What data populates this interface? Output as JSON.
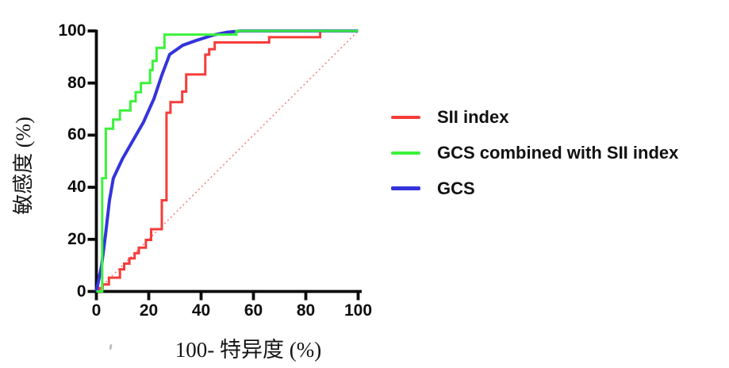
{
  "chart_data": {
    "type": "line",
    "subtype": "roc-curve",
    "title": "",
    "xlabel": "100- 特异度 (%)",
    "ylabel": "敏感度 (%)",
    "xlim": [
      0,
      100
    ],
    "ylim": [
      0,
      100
    ],
    "x_ticks": [
      "0",
      "20",
      "40",
      "60",
      "80",
      "100"
    ],
    "y_ticks": [
      "0",
      "20",
      "40",
      "60",
      "80",
      "100"
    ],
    "grid": false,
    "legend_position": "right-center",
    "axis_color": "#0a0a0a",
    "series": [
      {
        "name": "SII index",
        "color": "#f63c3a",
        "line_width": 3,
        "line_style": "solid",
        "points": [
          [
            0,
            0
          ],
          [
            1,
            0
          ],
          [
            1,
            1.3
          ],
          [
            2.4,
            1.3
          ],
          [
            2.4,
            2.7
          ],
          [
            4.8,
            2.7
          ],
          [
            4.8,
            5.3
          ],
          [
            9,
            5.3
          ],
          [
            9,
            8.5
          ],
          [
            10.6,
            8.5
          ],
          [
            10.6,
            10.7
          ],
          [
            12.6,
            10.7
          ],
          [
            12.6,
            12.7
          ],
          [
            14.6,
            12.7
          ],
          [
            14.6,
            14.7
          ],
          [
            16.2,
            14.7
          ],
          [
            16.2,
            16.8
          ],
          [
            18.9,
            16.8
          ],
          [
            18.9,
            19.8
          ],
          [
            20.9,
            19.8
          ],
          [
            20.9,
            23.9
          ],
          [
            25,
            23.9
          ],
          [
            25,
            35
          ],
          [
            26.8,
            35
          ],
          [
            26.8,
            68.6
          ],
          [
            28.3,
            68.6
          ],
          [
            28.3,
            72.7
          ],
          [
            32.8,
            72.7
          ],
          [
            32.8,
            76.7
          ],
          [
            34.3,
            76.7
          ],
          [
            34.3,
            83.3
          ],
          [
            41.6,
            83.3
          ],
          [
            41.6,
            90.9
          ],
          [
            43.1,
            90.9
          ],
          [
            43.1,
            93
          ],
          [
            45.2,
            93
          ],
          [
            45.2,
            95.6
          ],
          [
            66,
            95.6
          ],
          [
            66,
            97.6
          ],
          [
            85.5,
            97.6
          ],
          [
            85.5,
            100
          ],
          [
            100,
            100
          ]
        ]
      },
      {
        "name": "GCS combined with SII index",
        "color": "#3bf23b",
        "line_width": 3,
        "line_style": "solid",
        "points": [
          [
            0,
            0
          ],
          [
            2.2,
            0
          ],
          [
            2.2,
            43.5
          ],
          [
            3.6,
            43.5
          ],
          [
            3.6,
            62.5
          ],
          [
            6.4,
            62.5
          ],
          [
            6.4,
            66
          ],
          [
            9,
            66
          ],
          [
            9,
            69.5
          ],
          [
            13,
            69.5
          ],
          [
            13,
            73
          ],
          [
            15,
            73
          ],
          [
            15,
            76.5
          ],
          [
            17,
            76.5
          ],
          [
            17,
            80
          ],
          [
            20.5,
            80
          ],
          [
            20.5,
            85
          ],
          [
            21.5,
            85
          ],
          [
            21.5,
            88.5
          ],
          [
            23,
            88.5
          ],
          [
            23,
            93.5
          ],
          [
            26,
            93.5
          ],
          [
            26,
            98.6
          ],
          [
            53.5,
            98.6
          ],
          [
            53.5,
            100
          ],
          [
            100,
            100
          ]
        ]
      },
      {
        "name": "GCS",
        "color": "#3434dc",
        "line_width": 4,
        "line_style": "solid",
        "points": [
          [
            0,
            0
          ],
          [
            2,
            10
          ],
          [
            3.5,
            22
          ],
          [
            5,
            35
          ],
          [
            6.5,
            43.5
          ],
          [
            10,
            51
          ],
          [
            14,
            58
          ],
          [
            18,
            65
          ],
          [
            22,
            74
          ],
          [
            25,
            83
          ],
          [
            28,
            91
          ],
          [
            33,
            94.5
          ],
          [
            38,
            96.3
          ],
          [
            45,
            98.5
          ],
          [
            50,
            99.5
          ],
          [
            55,
            100
          ],
          [
            100,
            100
          ]
        ]
      }
    ],
    "reference_line": {
      "name": "chance diagonal",
      "color": "#f7736f",
      "line_width": 1.4,
      "line_style": "dotted",
      "points": [
        [
          0,
          0
        ],
        [
          100,
          100
        ]
      ]
    }
  }
}
